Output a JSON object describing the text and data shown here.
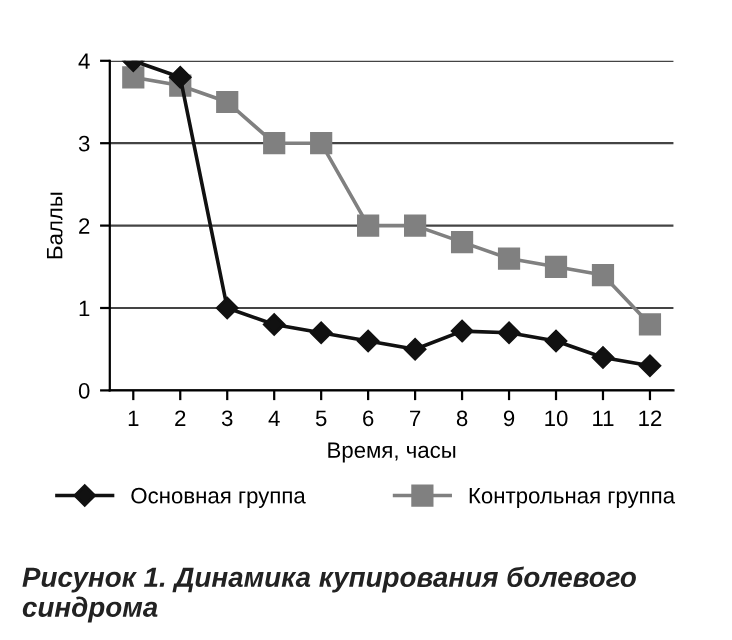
{
  "chart_data": {
    "type": "line",
    "xlabel": "Время, часы",
    "ylabel": "Баллы",
    "categories": [
      "1",
      "2",
      "3",
      "4",
      "5",
      "6",
      "7",
      "8",
      "9",
      "10",
      "11",
      "12"
    ],
    "series": [
      {
        "name": "Основная группа",
        "color": "#111111",
        "marker": "diamond",
        "values": [
          4.0,
          3.8,
          1.0,
          0.8,
          0.7,
          0.6,
          0.5,
          0.72,
          0.7,
          0.6,
          0.4,
          0.3
        ]
      },
      {
        "name": "Контрольная группа",
        "color": "#808080",
        "marker": "square",
        "values": [
          3.8,
          3.7,
          3.5,
          3.0,
          3.0,
          2.0,
          2.0,
          1.8,
          1.6,
          1.5,
          1.4,
          0.8
        ]
      }
    ],
    "ylim": [
      0,
      4
    ],
    "yticks": [
      0,
      1,
      2,
      3,
      4
    ],
    "grid": "y",
    "legend": "bottom",
    "line_style": "solid",
    "annotations": [
      "Рисунок 1. Динамика купирования болевого синдрома"
    ]
  }
}
